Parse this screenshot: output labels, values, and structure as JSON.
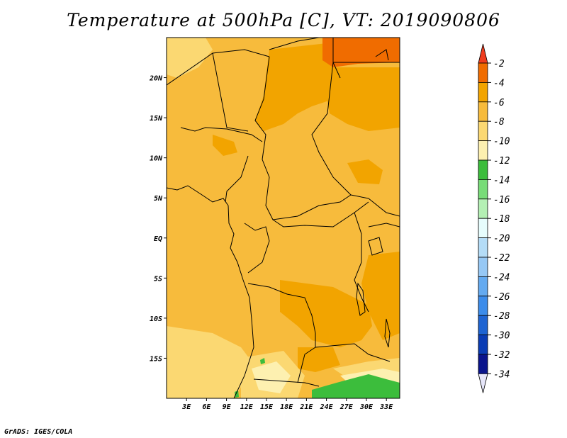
{
  "title": "Temperature at 500hPa [C], VT: 2019090806",
  "credit": "GrADS: IGES/COLA",
  "map": {
    "lon_range": [
      0,
      35
    ],
    "lat_range": [
      -20,
      25
    ],
    "x_ticks": [
      "3E",
      "6E",
      "9E",
      "12E",
      "15E",
      "18E",
      "21E",
      "24E",
      "27E",
      "30E",
      "33E"
    ],
    "y_ticks": [
      "20N",
      "15N",
      "10N",
      "5N",
      "EQ",
      "5S",
      "10S",
      "15S"
    ]
  },
  "colorbar": {
    "labels": [
      "-2",
      "-4",
      "-6",
      "-8",
      "-10",
      "-12",
      "-14",
      "-16",
      "-18",
      "-20",
      "-22",
      "-24",
      "-26",
      "-28",
      "-30",
      "-32",
      "-34"
    ],
    "colors": [
      "#f03c1e",
      "#f06c00",
      "#f2a400",
      "#f7bb3c",
      "#fbd872",
      "#fdf0b0",
      "#3cbd3c",
      "#78dc78",
      "#b4f0b4",
      "#e6fcfc",
      "#b4dcf7",
      "#96c8f5",
      "#64aaf0",
      "#3c8cea",
      "#1e64d2",
      "#0a3cb4",
      "#0a148c",
      "#e6e6fa"
    ]
  },
  "fields": {
    "base_color": "#f7bb3c",
    "warm_color": "#f2a400",
    "warmest_color": "#f06c00",
    "cool_color": "#fbd872",
    "coolest_color": "#fdf0b0",
    "cold_color": "#3cbd3c"
  }
}
